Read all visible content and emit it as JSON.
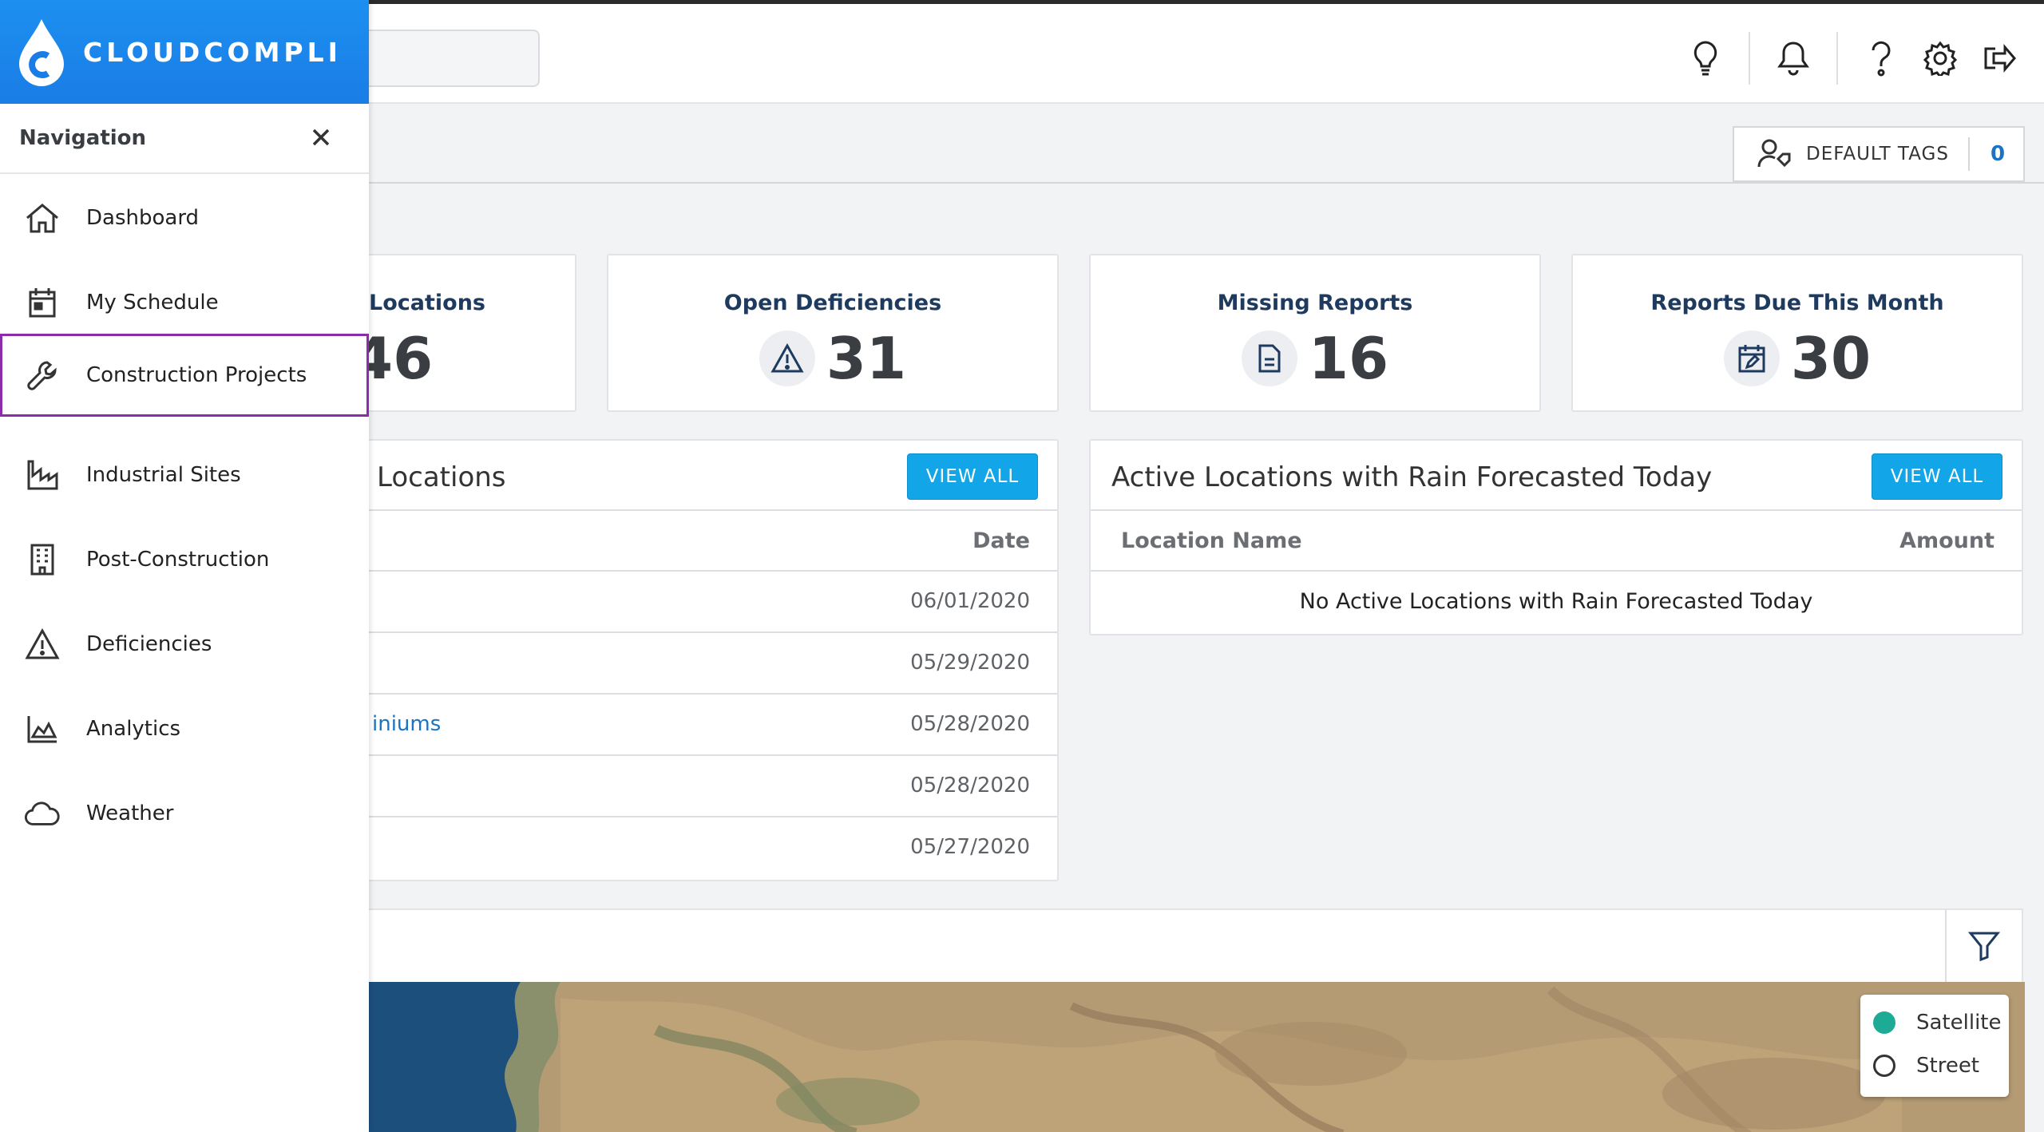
{
  "brand": {
    "name": "CLOUDCOMPLI"
  },
  "navigation": {
    "title": "Navigation",
    "items": [
      {
        "label": "Dashboard",
        "icon": "home-icon"
      },
      {
        "label": "My Schedule",
        "icon": "calendar-icon"
      },
      {
        "label": "Construction Projects",
        "icon": "wrench-icon",
        "selected": true
      },
      {
        "label": "Industrial Sites",
        "icon": "factory-icon"
      },
      {
        "label": "Post-Construction",
        "icon": "building-icon"
      },
      {
        "label": "Deficiencies",
        "icon": "warning-icon"
      },
      {
        "label": "Analytics",
        "icon": "area-chart-icon"
      },
      {
        "label": "Weather",
        "icon": "cloud-icon"
      }
    ]
  },
  "header": {
    "icons": [
      "lightbulb-icon",
      "bell-icon",
      "help-icon",
      "gear-icon",
      "logout-icon"
    ]
  },
  "default_tags": {
    "label": "DEFAULT TAGS",
    "count": "0"
  },
  "stats": [
    {
      "title": "Locations",
      "value": "46",
      "icon": "location-icon"
    },
    {
      "title": "Open Deficiencies",
      "value": "31",
      "icon": "warning-icon"
    },
    {
      "title": "Missing Reports",
      "value": "16",
      "icon": "document-icon"
    },
    {
      "title": "Reports Due This Month",
      "value": "30",
      "icon": "calendar-edit-icon"
    }
  ],
  "recent_panel": {
    "title": "Locations",
    "view_all": "VIEW ALL",
    "columns": {
      "date": "Date"
    },
    "rows": [
      {
        "name": "",
        "date": "06/01/2020"
      },
      {
        "name": "",
        "date": "05/29/2020"
      },
      {
        "name": "iniums",
        "date": "05/28/2020"
      },
      {
        "name": "",
        "date": "05/28/2020"
      },
      {
        "name": "",
        "date": "05/27/2020"
      }
    ]
  },
  "rain_panel": {
    "title": "Active Locations with Rain Forecasted Today",
    "view_all": "VIEW ALL",
    "columns": {
      "name": "Location Name",
      "amount": "Amount"
    },
    "empty_message": "No Active Locations with Rain Forecasted Today"
  },
  "map": {
    "layers": [
      {
        "label": "Satellite",
        "selected": true
      },
      {
        "label": "Street",
        "selected": false
      }
    ]
  },
  "colors": {
    "brand": "#1a7de6",
    "accent": "#12a5e8",
    "link": "#1a73c4",
    "selected_outline": "#8a2dab"
  }
}
